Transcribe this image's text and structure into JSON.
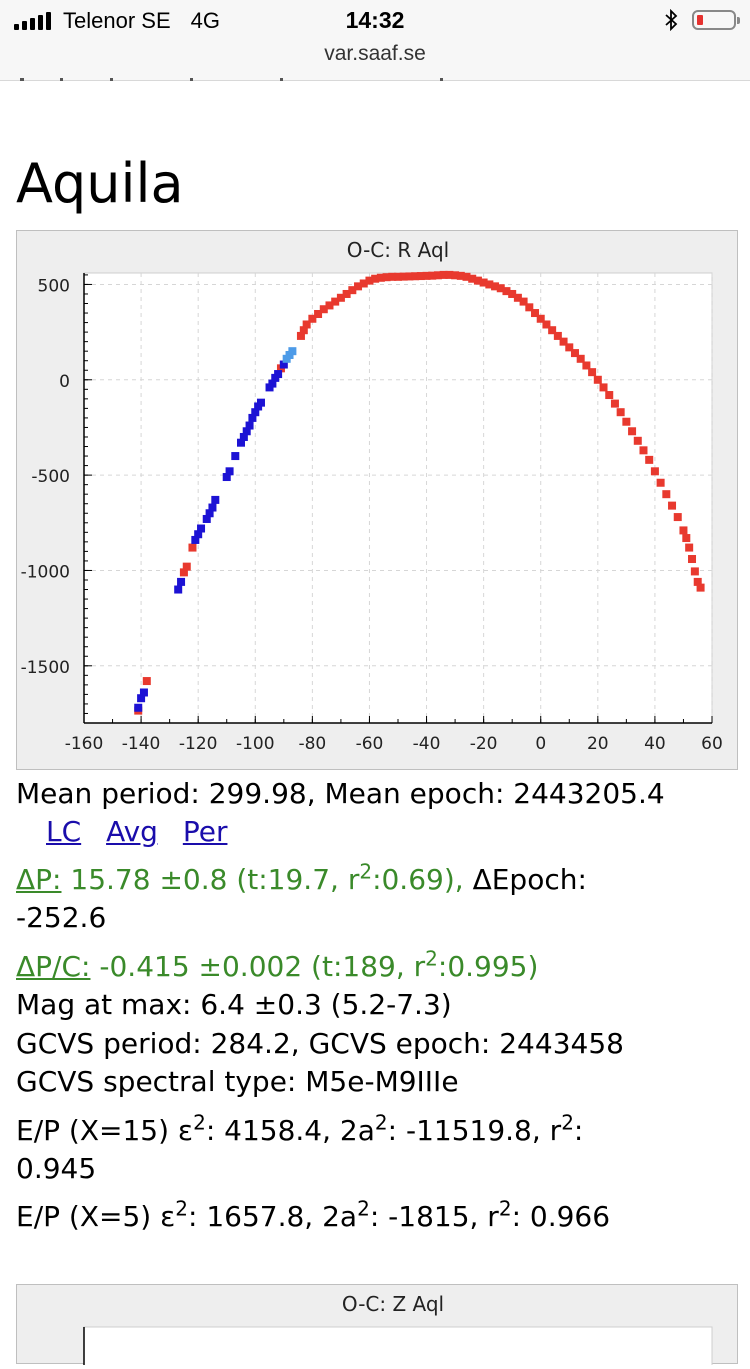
{
  "status_bar": {
    "carrier": "Telenor SE",
    "network": "4G",
    "time": "14:32",
    "url": "var.saaf.se"
  },
  "station_title": "Aquila",
  "chart_data": [
    {
      "type": "scatter",
      "title": "O-C: R Aql",
      "xlim": [
        -160,
        60
      ],
      "ylim": [
        -1800,
        560
      ],
      "x_ticks": [
        -160,
        -140,
        -120,
        -100,
        -80,
        -60,
        -40,
        -20,
        0,
        20,
        40,
        60
      ],
      "y_ticks": [
        500,
        0,
        -500,
        -1000,
        -1500
      ],
      "grid": true,
      "series": [
        {
          "color": "#e8392e",
          "points": [
            [
              -141,
              -1735
            ],
            [
              -138,
              -1580
            ],
            [
              -125,
              -1010
            ],
            [
              -124,
              -980
            ],
            [
              -122,
              -880
            ],
            [
              -91,
              60
            ],
            [
              -84,
              230
            ],
            [
              -83,
              260
            ],
            [
              -82,
              290
            ],
            [
              -80,
              320
            ],
            [
              -78,
              345
            ],
            [
              -76,
              370
            ],
            [
              -74,
              390
            ],
            [
              -72,
              410
            ],
            [
              -70,
              430
            ],
            [
              -68,
              450
            ],
            [
              -66,
              470
            ],
            [
              -64,
              490
            ],
            [
              -62,
              505
            ],
            [
              -60,
              520
            ],
            [
              -58,
              530
            ],
            [
              -56,
              535
            ],
            [
              -54,
              538
            ],
            [
              -52,
              540
            ],
            [
              -50,
              540
            ],
            [
              -48,
              541
            ],
            [
              -46,
              542
            ],
            [
              -44,
              543
            ],
            [
              -42,
              544
            ],
            [
              -40,
              545
            ],
            [
              -38,
              546
            ],
            [
              -36,
              548
            ],
            [
              -34,
              550
            ],
            [
              -32,
              550
            ],
            [
              -30,
              548
            ],
            [
              -28,
              545
            ],
            [
              -26,
              540
            ],
            [
              -24,
              530
            ],
            [
              -22,
              520
            ],
            [
              -20,
              510
            ],
            [
              -18,
              500
            ],
            [
              -16,
              490
            ],
            [
              -14,
              480
            ],
            [
              -12,
              465
            ],
            [
              -10,
              450
            ],
            [
              -8,
              430
            ],
            [
              -6,
              410
            ],
            [
              -4,
              380
            ],
            [
              -2,
              350
            ],
            [
              0,
              320
            ],
            [
              2,
              290
            ],
            [
              4,
              260
            ],
            [
              6,
              230
            ],
            [
              8,
              200
            ],
            [
              10,
              170
            ],
            [
              12,
              140
            ],
            [
              14,
              110
            ],
            [
              16,
              75
            ],
            [
              18,
              40
            ],
            [
              20,
              0
            ],
            [
              22,
              -40
            ],
            [
              24,
              -80
            ],
            [
              26,
              -125
            ],
            [
              28,
              -170
            ],
            [
              30,
              -220
            ],
            [
              32,
              -270
            ],
            [
              34,
              -320
            ],
            [
              36,
              -370
            ],
            [
              38,
              -420
            ],
            [
              40,
              -480
            ],
            [
              42,
              -540
            ],
            [
              44,
              -600
            ],
            [
              46,
              -660
            ],
            [
              48,
              -720
            ],
            [
              50,
              -790
            ],
            [
              51,
              -830
            ],
            [
              52,
              -880
            ],
            [
              53,
              -940
            ],
            [
              54,
              -1005
            ],
            [
              55,
              -1060
            ],
            [
              56,
              -1090
            ]
          ]
        },
        {
          "color": "#1c12d4",
          "points": [
            [
              -141,
              -1720
            ],
            [
              -140,
              -1670
            ],
            [
              -139,
              -1640
            ],
            [
              -127,
              -1100
            ],
            [
              -126,
              -1060
            ],
            [
              -121,
              -840
            ],
            [
              -120,
              -810
            ],
            [
              -119,
              -780
            ],
            [
              -117,
              -730
            ],
            [
              -116,
              -700
            ],
            [
              -115,
              -670
            ],
            [
              -114,
              -630
            ],
            [
              -110,
              -510
            ],
            [
              -109,
              -480
            ],
            [
              -107,
              -400
            ],
            [
              -105,
              -330
            ],
            [
              -104,
              -300
            ],
            [
              -103,
              -270
            ],
            [
              -102,
              -240
            ],
            [
              -101,
              -200
            ],
            [
              -100,
              -170
            ],
            [
              -99,
              -140
            ],
            [
              -98,
              -120
            ],
            [
              -95,
              -40
            ],
            [
              -94,
              -20
            ],
            [
              -93,
              10
            ],
            [
              -92,
              30
            ],
            [
              -90,
              80
            ]
          ]
        },
        {
          "color": "#4d9be8",
          "points": [
            [
              -89,
              110
            ],
            [
              -88,
              130
            ],
            [
              -87,
              150
            ]
          ]
        }
      ]
    },
    {
      "type": "scatter",
      "title": "O-C: Z Aql"
    }
  ],
  "info": {
    "mean_line": "Mean period: 299.98, Mean epoch: 2443205.4",
    "links": [
      "LC",
      "Avg",
      "Per"
    ],
    "dp_label": "ΔP:",
    "dp_value": " 15.78 ±0.8 (t:19.7, r",
    "dp_r2": ":0.69),",
    "depoch_label": " ΔEpoch:",
    "depoch_value": "-252.6",
    "dpc_label": "ΔP/C:",
    "dpc_value": " -0.415 ±0.002 (t:189, r",
    "dpc_r2": ":0.995)",
    "mag_max": "Mag at max: 6.4 ±0.3 (5.2-7.3)",
    "gcvs_line": "GCVS period: 284.2, GCVS epoch: 2443458",
    "gcvs_spectral": "GCVS spectral type: M5e-M9IIIe",
    "ep15_a": "E/P (X=15) ε",
    "ep15_b": ": 4158.4, 2a",
    "ep15_c": ": -11519.8, r",
    "ep15_d": ":",
    "ep15_e": "0.945",
    "ep5_a": "E/P (X=5) ε",
    "ep5_b": ": 1657.8, 2a",
    "ep5_c": ": -1815, r",
    "ep5_d": ": 0.966",
    "sup2": "2"
  }
}
